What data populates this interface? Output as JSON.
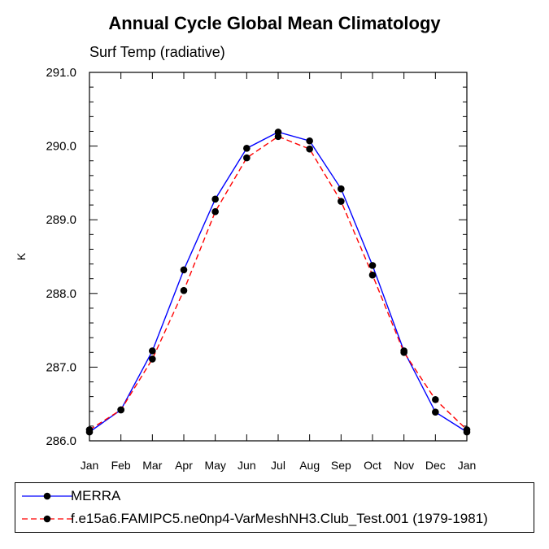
{
  "chart_data": {
    "type": "line",
    "title": "Annual Cycle Global Mean Climatology",
    "subtitle": "Surf Temp (radiative)",
    "xlabel": "",
    "ylabel": "K",
    "categories": [
      "Jan",
      "Feb",
      "Mar",
      "Apr",
      "May",
      "Jun",
      "Jul",
      "Aug",
      "Sep",
      "Oct",
      "Nov",
      "Dec",
      "Jan"
    ],
    "ylim": [
      286.0,
      291.0
    ],
    "yticks": [
      "286.0",
      "287.0",
      "288.0",
      "289.0",
      "290.0",
      "291.0"
    ],
    "grid": false,
    "legend_position": "bottom",
    "series": [
      {
        "name": "MERRA",
        "color": "#0000ff",
        "dash": "solid",
        "values": [
          286.12,
          286.42,
          287.22,
          288.32,
          289.28,
          289.97,
          290.19,
          290.07,
          289.42,
          288.38,
          287.22,
          286.39,
          286.12
        ]
      },
      {
        "name": "f.e15a6.FAMIPC5.ne0np4-VarMeshNH3.Club_Test.001 (1979-1981)",
        "color": "#ff0000",
        "dash": "dashed",
        "values": [
          286.15,
          286.42,
          287.11,
          288.04,
          289.11,
          289.84,
          290.13,
          289.96,
          289.25,
          288.25,
          287.2,
          286.56,
          286.15
        ]
      }
    ]
  }
}
